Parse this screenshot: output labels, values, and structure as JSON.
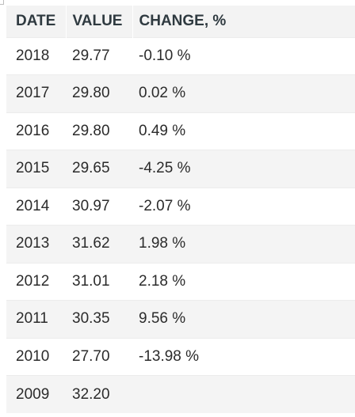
{
  "table": {
    "headers": {
      "date": "DATE",
      "value": "VALUE",
      "change": "CHANGE, %"
    },
    "rows": [
      {
        "date": "2018",
        "value": "29.77",
        "change": "-0.10 %"
      },
      {
        "date": "2017",
        "value": "29.80",
        "change": "0.02 %"
      },
      {
        "date": "2016",
        "value": "29.80",
        "change": "0.49 %"
      },
      {
        "date": "2015",
        "value": "29.65",
        "change": "-4.25 %"
      },
      {
        "date": "2014",
        "value": "30.97",
        "change": "-2.07 %"
      },
      {
        "date": "2013",
        "value": "31.62",
        "change": "1.98 %"
      },
      {
        "date": "2012",
        "value": "31.01",
        "change": "2.18 %"
      },
      {
        "date": "2011",
        "value": "30.35",
        "change": "9.56 %"
      },
      {
        "date": "2010",
        "value": "27.70",
        "change": "-13.98 %"
      },
      {
        "date": "2009",
        "value": "32.20",
        "change": ""
      }
    ]
  }
}
